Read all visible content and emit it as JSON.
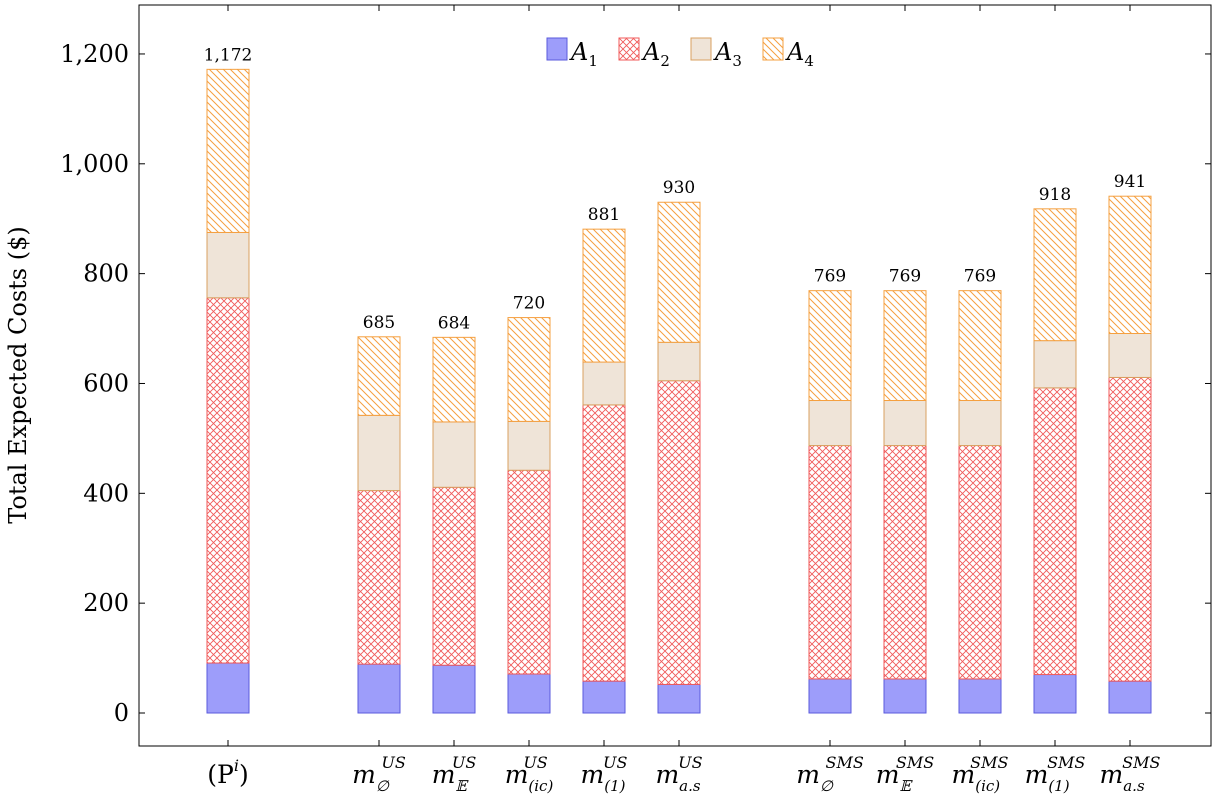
{
  "chart_data": {
    "type": "bar",
    "stacked": true,
    "ylabel": "Total Expected Costs ($)",
    "ylim": [
      -55,
      1280
    ],
    "yticks": [
      0,
      200,
      400,
      600,
      800,
      1000,
      1200
    ],
    "ytick_labels": [
      "0",
      "200",
      "400",
      "600",
      "800",
      "1,000",
      "1,200"
    ],
    "grid": false,
    "legend_position": "top-center",
    "categories": [
      {
        "base": "(P",
        "sup": "i",
        "sub": "",
        "suffix": ")"
      },
      {
        "base": "m",
        "sup": "US",
        "sub": "∅",
        "suffix": ""
      },
      {
        "base": "m",
        "sup": "US",
        "sub": "𝔼",
        "suffix": ""
      },
      {
        "base": "m",
        "sup": "US",
        "sub": "(ic)",
        "suffix": ""
      },
      {
        "base": "m",
        "sup": "US",
        "sub": "(1)",
        "suffix": ""
      },
      {
        "base": "m",
        "sup": "US",
        "sub": "a.s",
        "suffix": ""
      },
      {
        "base": "m",
        "sup": "SMS",
        "sub": "∅",
        "suffix": ""
      },
      {
        "base": "m",
        "sup": "SMS",
        "sub": "𝔼",
        "suffix": ""
      },
      {
        "base": "m",
        "sup": "SMS",
        "sub": "(ic)",
        "suffix": ""
      },
      {
        "base": "m",
        "sup": "SMS",
        "sub": "(1)",
        "suffix": ""
      },
      {
        "base": "m",
        "sup": "SMS",
        "sub": "a.s",
        "suffix": ""
      }
    ],
    "totals": [
      "1,172",
      "685",
      "684",
      "720",
      "881",
      "930",
      "769",
      "769",
      "769",
      "918",
      "941"
    ],
    "series": [
      {
        "name": "A",
        "name_sub": "1",
        "pattern": "solid",
        "fill": "#9d9dfa",
        "stroke": "#5a5adc",
        "values": [
          91,
          89,
          87,
          71,
          58,
          52,
          62,
          62,
          62,
          70,
          58
        ]
      },
      {
        "name": "A",
        "name_sub": "2",
        "pattern": "crosshatch",
        "fill": "#ffffff",
        "stroke": "#f05a5a",
        "values": [
          665,
          316,
          324,
          371,
          503,
          553,
          425,
          425,
          425,
          522,
          553
        ]
      },
      {
        "name": "A",
        "name_sub": "3",
        "pattern": "solid",
        "fill": "#efe4d8",
        "stroke": "#d8a060",
        "values": [
          119,
          137,
          119,
          89,
          78,
          70,
          82,
          82,
          82,
          86,
          80
        ]
      },
      {
        "name": "A",
        "name_sub": "4",
        "pattern": "diagonal",
        "fill": "#ffffff",
        "stroke": "#f5a040",
        "values": [
          297,
          143,
          154,
          189,
          242,
          255,
          200,
          200,
          200,
          240,
          250
        ]
      }
    ]
  }
}
